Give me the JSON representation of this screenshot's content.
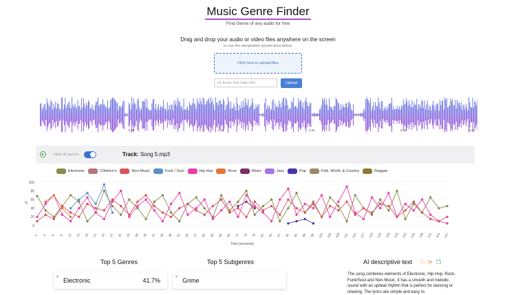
{
  "header": {
    "title": "Music Genre Finder",
    "subtitle": "Find Genre of any audio for free"
  },
  "upload": {
    "heading": "Drag and drop your audio or video files anywhere on the screen",
    "subheading": "or use the designated upload area below.",
    "area_label": "Click here to upload files",
    "youtube_placeholder": "Or Enter YouTube URL",
    "button_label": "Upload"
  },
  "waveform": {
    "time_labels": [
      "0:30",
      "1:00",
      "1:30",
      "2:00",
      "2:30"
    ],
    "color_from": "#8a3fd6",
    "color_to": "#5a6fe0"
  },
  "controls": {
    "hide_label": "Hide all genres",
    "hide_enabled": true,
    "track_prefix": "Track:",
    "track_name": "Song 5.mp3"
  },
  "legend": [
    {
      "name": "Electronic",
      "color": "#8a8a4a"
    },
    {
      "name": "Children's",
      "color": "#b8727a"
    },
    {
      "name": "Non-Music",
      "color": "#d9535a"
    },
    {
      "name": "Funk / Soul",
      "color": "#5b8fc9"
    },
    {
      "name": "Hip Hop",
      "color": "#e83fa8"
    },
    {
      "name": "Rock",
      "color": "#e0773a"
    },
    {
      "name": "Blues",
      "color": "#7a2f66"
    },
    {
      "name": "Jazz",
      "color": "#a577e0"
    },
    {
      "name": "Pop",
      "color": "#4a35a8"
    },
    {
      "name": "Folk, World, & Country",
      "color": "#9c8a6a"
    },
    {
      "name": "Reggae",
      "color": "#8f7a2e"
    }
  ],
  "chart_data": {
    "type": "line",
    "xlabel": "Time (seconds)",
    "ylabel": "%",
    "ylim": [
      0,
      100
    ],
    "yticks": [
      0,
      20,
      40,
      60,
      80,
      100
    ],
    "x": [
      0,
      3,
      6,
      9,
      12,
      15,
      18,
      21,
      24,
      27,
      30,
      33,
      36,
      39,
      42,
      45,
      48,
      51,
      54,
      57,
      60,
      63,
      66,
      69,
      72,
      75,
      78,
      81,
      84,
      87,
      90,
      93,
      96,
      99,
      102,
      105,
      108,
      111,
      114,
      117,
      120,
      123,
      126,
      129,
      132,
      135,
      138,
      141,
      144,
      147
    ],
    "series": [
      {
        "name": "Electronic",
        "values": [
          68,
          35,
          20,
          45,
          70,
          55,
          10,
          30,
          80,
          45,
          25,
          60,
          40,
          15,
          55,
          70,
          30,
          10,
          50,
          65,
          40,
          20,
          70,
          35,
          55,
          80,
          25,
          45,
          60,
          10,
          40,
          75,
          30,
          55,
          20,
          65,
          45,
          10,
          70,
          40,
          25,
          60,
          35,
          80,
          15,
          50,
          30,
          65,
          40,
          45
        ]
      },
      {
        "name": "Hip Hop",
        "values": [
          20,
          50,
          70,
          25,
          10,
          40,
          65,
          30,
          15,
          55,
          80,
          20,
          45,
          60,
          35,
          10,
          50,
          75,
          25,
          40,
          60,
          15,
          35,
          55,
          20,
          70,
          45,
          30,
          10,
          60,
          85,
          25,
          50,
          40,
          70,
          20,
          55,
          90,
          30,
          15,
          65,
          40,
          75,
          20,
          50,
          35,
          60,
          25,
          10,
          5
        ]
      },
      {
        "name": "Funk / Soul",
        "values": [
          null,
          null,
          null,
          null,
          40,
          60,
          75,
          50,
          95,
          30,
          null,
          null,
          null,
          null,
          null,
          null,
          null,
          null,
          null,
          null,
          null,
          null,
          null,
          null,
          null,
          null,
          null,
          null,
          null,
          null,
          null,
          null,
          null,
          null,
          null,
          null,
          null,
          null,
          null,
          null,
          null,
          null,
          null,
          null,
          null,
          null,
          null,
          null,
          null,
          null
        ]
      },
      {
        "name": "Non-Music",
        "values": [
          10,
          25,
          15,
          45,
          30,
          20,
          50,
          40,
          35,
          60,
          45,
          25,
          55,
          70,
          45,
          30,
          20,
          40,
          50,
          35,
          25,
          45,
          60,
          30,
          40,
          20,
          55,
          35,
          45,
          25,
          60,
          40,
          30,
          50,
          20,
          45,
          35,
          55,
          25,
          40,
          30,
          50,
          45,
          20,
          35,
          55,
          30,
          15,
          10,
          20
        ]
      },
      {
        "name": "Rock",
        "values": [
          null,
          55,
          70,
          40,
          20,
          null,
          null,
          null,
          null,
          null,
          null,
          null,
          null,
          null,
          null,
          null,
          null,
          null,
          null,
          null,
          null,
          null,
          null,
          null,
          null,
          null,
          null,
          null,
          null,
          null,
          null,
          null,
          null,
          null,
          null,
          null,
          null,
          null,
          null,
          null,
          null,
          null,
          null,
          null,
          null,
          null,
          null,
          null,
          null,
          null
        ]
      },
      {
        "name": "Pop",
        "values": [
          null,
          null,
          null,
          null,
          null,
          null,
          null,
          null,
          null,
          null,
          null,
          null,
          null,
          null,
          null,
          null,
          null,
          null,
          null,
          null,
          null,
          null,
          null,
          null,
          null,
          null,
          null,
          null,
          null,
          null,
          5,
          10,
          15,
          5,
          null,
          null,
          null,
          null,
          null,
          null,
          null,
          null,
          null,
          null,
          null,
          null,
          null,
          null,
          null,
          null
        ]
      },
      {
        "name": "Blues",
        "values": [
          null,
          null,
          null,
          null,
          null,
          null,
          null,
          null,
          null,
          null,
          null,
          null,
          null,
          null,
          null,
          null,
          null,
          null,
          null,
          null,
          null,
          null,
          null,
          null,
          45,
          55,
          40,
          null,
          null,
          null,
          null,
          null,
          null,
          null,
          null,
          null,
          null,
          null,
          null,
          null,
          null,
          null,
          null,
          null,
          null,
          null,
          null,
          null,
          null,
          null
        ]
      }
    ]
  },
  "summary": {
    "genres_title": "Top 5 Genres",
    "subgenres_title": "Top 5 Subgenres",
    "top_genre": {
      "name": "Electronic",
      "percent": "41.7%"
    },
    "top_subgenre": {
      "name": "Grime"
    },
    "ai_title": "AI descriptive text",
    "ai_text": "The song combines elements of Electronic, Hip Hop, Rock, Funk/Soul and Non-Music. It has a smooth and melodic sound with an upbeat rhythm that is perfect for dancing or relaxing. The lyrics are simple and easy to"
  }
}
